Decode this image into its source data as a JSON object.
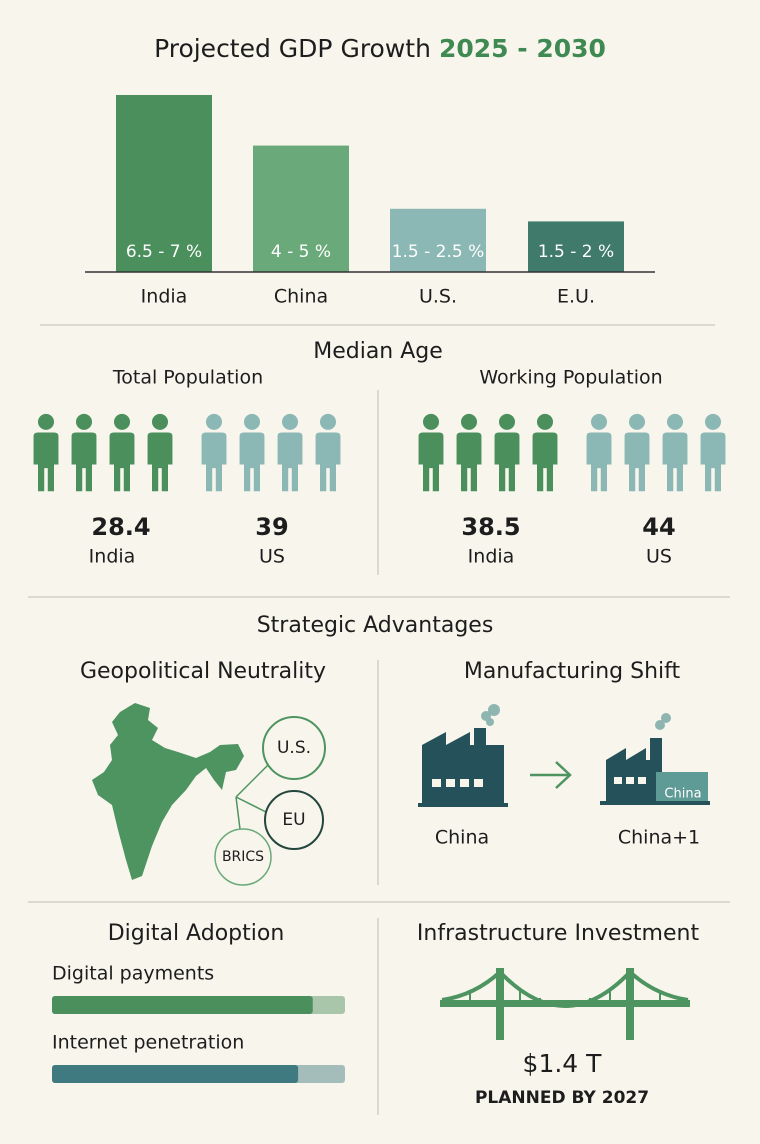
{
  "chart_data": {
    "type": "bar",
    "title": "Projected GDP Growth",
    "title_highlight": "2025 - 2030",
    "categories": [
      "India",
      "China",
      "U.S.",
      "E.U."
    ],
    "values": [
      7,
      5,
      2.5,
      2
    ],
    "value_labels": [
      "6.5 - 7 %",
      "4 - 5 %",
      "1.5 - 2.5 %",
      "1.5 - 2 %"
    ],
    "colors": [
      "#4a8f5c",
      "#6aaa7a",
      "#8bb8b4",
      "#3f7a6a"
    ]
  },
  "median_age": {
    "title": "Median Age",
    "groups": [
      {
        "title": "Total Population",
        "items": [
          {
            "value": 28.4,
            "label": "India"
          },
          {
            "value": 39,
            "label": "US"
          }
        ]
      },
      {
        "title": "Working Population",
        "items": [
          {
            "value": 38.5,
            "label": "India"
          },
          {
            "value": 44,
            "label": "US"
          }
        ]
      }
    ]
  },
  "strategic": {
    "title": "Strategic Advantages",
    "geo": {
      "title": "Geopolitical Neutrality",
      "nodes": [
        "U.S.",
        "EU",
        "BRICS"
      ]
    },
    "manufacturing": {
      "title": "Manufacturing Shift",
      "from": "China",
      "to": "China+1",
      "tag": "China"
    }
  },
  "digital": {
    "title": "Digital Adoption",
    "bars": [
      {
        "name": "Digital payments",
        "value": 89,
        "color": "#4a8f5c"
      },
      {
        "name": "Internet penetration",
        "value": 84,
        "color": "#3f7a80"
      }
    ]
  },
  "infrastructure": {
    "title": "Infrastructure Investment",
    "amount": "$1.4 T",
    "note": "PLANNED BY 2027"
  }
}
